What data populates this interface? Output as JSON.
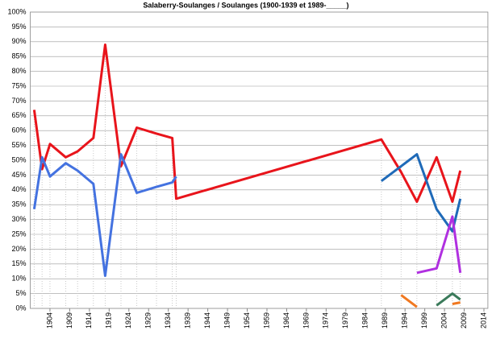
{
  "chart_data": {
    "type": "line",
    "title": "Salaberry-Soulanges  / Soulanges (1900-1939  et 1989-_____)",
    "x": [
      1900,
      1902,
      1904,
      1908,
      1911,
      1915,
      1918,
      1922,
      1926,
      1931,
      1935,
      1936,
      1988,
      1993,
      1997,
      2002,
      2006,
      2008
    ],
    "xlim": [
      1899,
      2015
    ],
    "xticks": [
      1904,
      1909,
      1914,
      1919,
      1924,
      1929,
      1934,
      1939,
      1944,
      1949,
      1954,
      1959,
      1964,
      1969,
      1974,
      1979,
      1984,
      1989,
      1994,
      1999,
      2004,
      2009,
      2014
    ],
    "ylim": [
      0,
      100
    ],
    "yticks": [
      {
        "value": 0,
        "label": "0%"
      },
      {
        "value": 5,
        "label": "5%"
      },
      {
        "value": 10,
        "label": "10%"
      },
      {
        "value": 15,
        "label": "15%"
      },
      {
        "value": 20,
        "label": "20%"
      },
      {
        "value": 25,
        "label": "25%"
      },
      {
        "value": 30,
        "label": "30%"
      },
      {
        "value": 35,
        "label": "35%"
      },
      {
        "value": 40,
        "label": "40%"
      },
      {
        "value": 45,
        "label": "45%"
      },
      {
        "value": 50,
        "label": "50%"
      },
      {
        "value": 55,
        "label": "55%"
      },
      {
        "value": 60,
        "label": "60%"
      },
      {
        "value": 65,
        "label": "65%"
      },
      {
        "value": 70,
        "label": "70%"
      },
      {
        "value": 75,
        "label": "75%"
      },
      {
        "value": 80,
        "label": "80%"
      },
      {
        "value": 85,
        "label": "85%"
      },
      {
        "value": 90,
        "label": "90%"
      },
      {
        "value": 95,
        "label": "95%"
      },
      {
        "value": 100,
        "label": "100%"
      }
    ],
    "grid": true,
    "series": [
      {
        "color": "#e8141b",
        "values": [
          67,
          47,
          55.5,
          51,
          53,
          57.5,
          89,
          48,
          61,
          59,
          57.5,
          37,
          57,
          46,
          36,
          51,
          36,
          46.5
        ]
      },
      {
        "color": "#4472e0",
        "values": [
          33.5,
          51,
          44.5,
          49,
          46.5,
          42,
          11,
          52,
          39,
          41,
          42.5,
          44.5,
          null,
          null,
          null,
          null,
          null,
          null
        ]
      },
      {
        "color": "#1f6ab8",
        "values": [
          null,
          null,
          null,
          null,
          null,
          null,
          null,
          null,
          null,
          null,
          null,
          null,
          43,
          48,
          52,
          33.5,
          26,
          37
        ]
      },
      {
        "color": "#b030e0",
        "values": [
          null,
          null,
          null,
          null,
          null,
          null,
          null,
          null,
          null,
          null,
          null,
          null,
          null,
          null,
          12,
          13.5,
          31,
          12
        ]
      },
      {
        "color": "#f07820",
        "values": [
          null,
          null,
          null,
          null,
          null,
          null,
          null,
          null,
          null,
          null,
          null,
          null,
          null,
          4.5,
          0.5,
          null,
          1.5,
          2
        ]
      },
      {
        "color": "#3a7a5a",
        "values": [
          null,
          null,
          null,
          null,
          null,
          null,
          null,
          null,
          null,
          null,
          null,
          null,
          null,
          null,
          null,
          1,
          5,
          3
        ]
      }
    ]
  }
}
